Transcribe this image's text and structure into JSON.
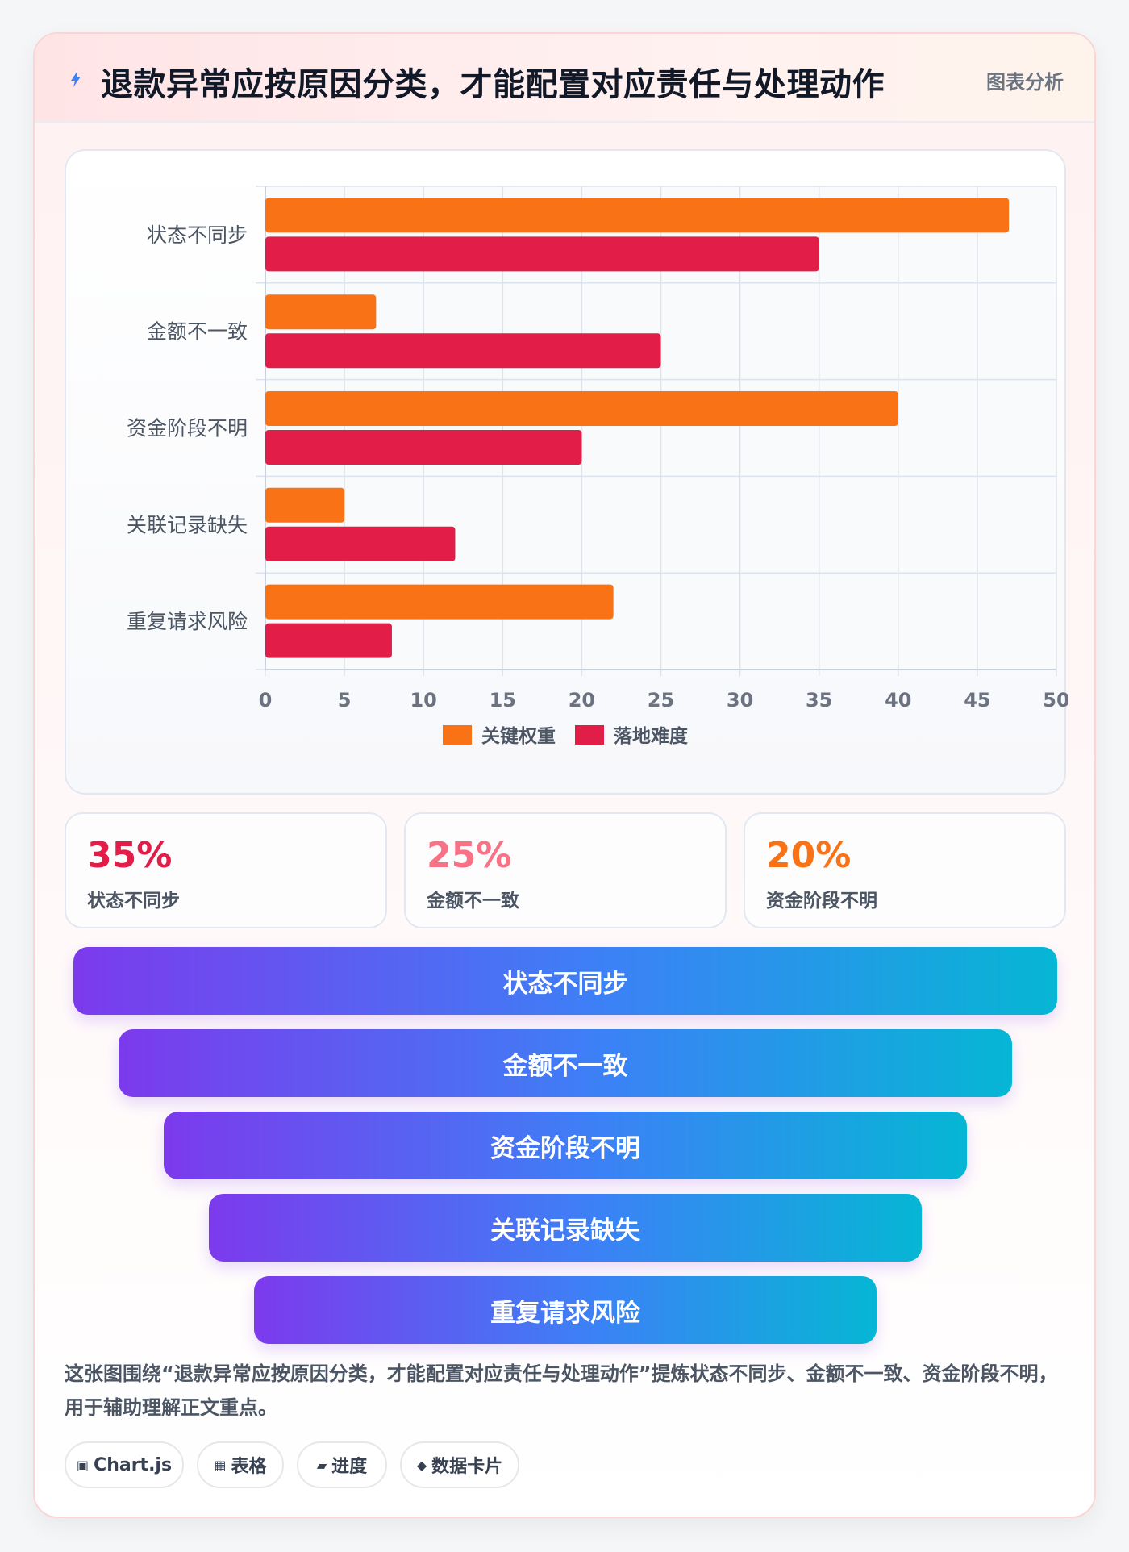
{
  "header": {
    "title": "退款异常应按原因分类，才能配置对应责任与处理动作",
    "tag": "图表分析",
    "icon": "lightning-icon"
  },
  "chart_data": {
    "type": "bar",
    "orientation": "horizontal",
    "categories": [
      "状态不同步",
      "金额不一致",
      "资金阶段不明",
      "关联记录缺失",
      "重复请求风险"
    ],
    "series": [
      {
        "name": "关键权重",
        "values": [
          47,
          7,
          40,
          5,
          22
        ],
        "color": "#f97316"
      },
      {
        "name": "落地难度",
        "values": [
          35,
          25,
          20,
          12,
          8
        ],
        "color": "#e11d48"
      }
    ],
    "xlim": [
      0,
      50
    ],
    "xticks": [
      0,
      5,
      10,
      15,
      20,
      25,
      30,
      35,
      40,
      45,
      50
    ],
    "grid": true,
    "legend": "bottom"
  },
  "stats": [
    {
      "value": "35%",
      "label": "状态不同步",
      "color": "#e11d48"
    },
    {
      "value": "25%",
      "label": "金额不一致",
      "color": "#f87185"
    },
    {
      "value": "20%",
      "label": "资金阶段不明",
      "color": "#f97316"
    }
  ],
  "funnel": [
    "状态不同步",
    "金额不一致",
    "资金阶段不明",
    "关联记录缺失",
    "重复请求风险"
  ],
  "description": "这张图围绕“退款异常应按原因分类，才能配置对应责任与处理动作”提炼状态不同步、金额不一致、资金阶段不明，用于辅助理解正文重点。",
  "pills": [
    {
      "icon": "▣",
      "label": "Chart.js"
    },
    {
      "icon": "▦",
      "label": "表格"
    },
    {
      "icon": "▰",
      "label": "进度"
    },
    {
      "icon": "◆",
      "label": "数据卡片"
    }
  ]
}
